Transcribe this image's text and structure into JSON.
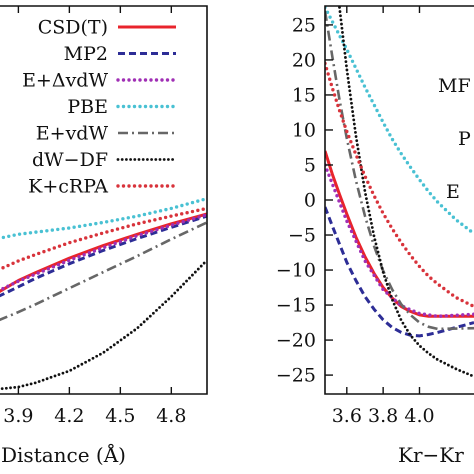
{
  "chart_data": [
    {
      "type": "line",
      "xlabel": "Distance (Å)",
      "xlim": [
        3.78,
        5.01
      ],
      "ylim": [
        -27.7,
        27.7
      ],
      "x_ticks": [
        "3.9",
        "4.2",
        "4.5",
        "4.8"
      ],
      "x_tick_values": [
        3.9,
        4.2,
        4.5,
        4.8
      ],
      "legend": {
        "placement": "top-left",
        "entries": [
          "CSD(T)",
          "MP2",
          "E+ΔvdW",
          "PBE",
          "E+vdW",
          "dW−DF",
          "K+cRPA"
        ]
      },
      "series": [
        {
          "name": "CSD(T)",
          "color": "#e8242c",
          "dash": "solid",
          "x": [
            3.78,
            3.9,
            4.0,
            4.2,
            4.4,
            4.6,
            4.8,
            5.01
          ],
          "y": [
            -13.2,
            -11.5,
            -10.4,
            -8.3,
            -6.5,
            -4.9,
            -3.4,
            -2.0
          ]
        },
        {
          "name": "MP2",
          "color": "#2d2d96",
          "dash": "dashed",
          "x": [
            3.78,
            3.9,
            4.0,
            4.2,
            4.4,
            4.6,
            4.8,
            5.01
          ],
          "y": [
            -13.8,
            -12.4,
            -11.2,
            -9.1,
            -7.2,
            -5.5,
            -3.9,
            -2.3
          ]
        },
        {
          "name": "E+ΔvdW",
          "color": "#a02fb5",
          "dash": "dotted",
          "x": [
            3.78,
            3.9,
            4.0,
            4.2,
            4.4,
            4.6,
            4.8,
            5.01
          ],
          "y": [
            -13.0,
            -11.6,
            -10.6,
            -8.6,
            -6.8,
            -5.1,
            -3.6,
            -2.1
          ]
        },
        {
          "name": "PBE",
          "color": "#49c1d3",
          "dash": "dotted",
          "x": [
            3.78,
            3.9,
            4.0,
            4.2,
            4.4,
            4.6,
            4.8,
            5.01
          ],
          "y": [
            -5.5,
            -4.9,
            -4.6,
            -4.0,
            -3.2,
            -2.3,
            -1.2,
            0.2
          ]
        },
        {
          "name": "E+vdW",
          "color": "#676767",
          "dash": "dashdot",
          "x": [
            3.78,
            3.9,
            4.0,
            4.2,
            4.4,
            4.6,
            4.8,
            5.01
          ],
          "y": [
            -17.2,
            -16.0,
            -14.9,
            -12.6,
            -10.3,
            -8.0,
            -5.6,
            -3.2
          ]
        },
        {
          "name": "dW−DF",
          "color": "#111111",
          "dash": "densedot",
          "x": [
            3.78,
            3.9,
            4.0,
            4.2,
            4.4,
            4.6,
            4.8,
            5.01
          ],
          "y": [
            -27.0,
            -26.7,
            -26.1,
            -24.4,
            -21.8,
            -18.3,
            -13.8,
            -8.6
          ]
        },
        {
          "name": "K+cRPA",
          "color": "#d8333b",
          "dash": "dotted",
          "x": [
            3.78,
            3.9,
            4.0,
            4.2,
            4.4,
            4.6,
            4.8,
            5.01
          ],
          "y": [
            -10.0,
            -8.7,
            -7.8,
            -6.1,
            -4.7,
            -3.4,
            -2.3,
            -1.2
          ]
        }
      ]
    },
    {
      "type": "line",
      "xlabel": "Kr−Kr",
      "xlim": [
        3.48,
        4.3
      ],
      "ylim": [
        -27.7,
        27.7
      ],
      "x_ticks": [
        "3.6",
        "3.8",
        "4.0"
      ],
      "x_tick_values": [
        3.6,
        3.8,
        4.0
      ],
      "y_ticks": [
        "25",
        "20",
        "15",
        "10",
        "5",
        "0",
        "−5",
        "−10",
        "−15",
        "−20",
        "−25"
      ],
      "y_tick_values": [
        25,
        20,
        15,
        10,
        5,
        0,
        -5,
        -10,
        -15,
        -20,
        -25
      ],
      "legend": {
        "placement": "right (clipped)",
        "entries": [
          "MF",
          "P",
          "E"
        ]
      },
      "series": [
        {
          "name": "CSD(T)",
          "color": "#e8242c",
          "dash": "solid",
          "x": [
            3.48,
            3.52,
            3.56,
            3.6,
            3.65,
            3.7,
            3.75,
            3.8,
            3.85,
            3.9,
            3.95,
            4.0,
            4.05,
            4.1,
            4.3
          ],
          "y": [
            7.0,
            3.7,
            0.8,
            -2.0,
            -5.3,
            -8.1,
            -10.5,
            -12.5,
            -14.0,
            -15.2,
            -15.9,
            -16.4,
            -16.6,
            -16.6,
            -16.6
          ]
        },
        {
          "name": "MP2",
          "color": "#2d2d96",
          "dash": "dashed",
          "x": [
            3.48,
            3.52,
            3.56,
            3.6,
            3.65,
            3.7,
            3.75,
            3.8,
            3.85,
            3.9,
            3.95,
            4.0,
            4.05,
            4.1,
            4.3
          ],
          "y": [
            -1.0,
            -3.7,
            -6.3,
            -8.9,
            -11.5,
            -13.8,
            -15.6,
            -17.1,
            -18.2,
            -18.9,
            -19.3,
            -19.4,
            -19.2,
            -18.9,
            -17.5
          ]
        },
        {
          "name": "E+ΔvdW",
          "color": "#a02fb5",
          "dash": "dotted",
          "x": [
            3.48,
            3.6,
            3.7,
            3.8,
            3.9,
            4.0,
            4.1,
            4.3
          ],
          "y": [
            5.0,
            -3.0,
            -8.7,
            -12.8,
            -15.1,
            -16.2,
            -16.6,
            -16.3
          ]
        },
        {
          "name": "PBE",
          "color": "#49c1d3",
          "dash": "dotted",
          "x": [
            3.48,
            3.52,
            3.56,
            3.6,
            3.65,
            3.7,
            3.75,
            3.8,
            3.85,
            3.9,
            3.95,
            4.0,
            4.05,
            4.1,
            4.2,
            4.3
          ],
          "y": [
            27.5,
            25.5,
            23.5,
            21.5,
            18.8,
            16.1,
            13.6,
            11.1,
            8.7,
            6.6,
            4.7,
            2.9,
            1.2,
            -0.3,
            -2.8,
            -4.8
          ]
        },
        {
          "name": "E+vdW",
          "color": "#676767",
          "dash": "dashdot",
          "x": [
            3.48,
            3.52,
            3.56,
            3.6,
            3.65,
            3.7,
            3.75,
            3.8,
            3.85,
            3.9,
            3.95,
            4.0,
            4.05,
            4.1,
            4.3
          ],
          "y": [
            27.0,
            20.5,
            14.3,
            8.8,
            2.8,
            -2.3,
            -6.6,
            -10.1,
            -12.8,
            -14.9,
            -16.4,
            -17.5,
            -18.1,
            -18.4,
            -18.3
          ]
        },
        {
          "name": "dW−DF",
          "color": "#111111",
          "dash": "densedot",
          "x": [
            3.56,
            3.6,
            3.65,
            3.7,
            3.75,
            3.8,
            3.85,
            3.9,
            3.95,
            4.0,
            4.05,
            4.1,
            4.2,
            4.3
          ],
          "y": [
            27.5,
            18.7,
            9.2,
            1.2,
            -5.2,
            -10.3,
            -14.2,
            -17.2,
            -19.3,
            -20.8,
            -21.9,
            -22.8,
            -24.1,
            -25.2
          ]
        },
        {
          "name": "K+cRPA",
          "color": "#d8333b",
          "dash": "dotted",
          "x": [
            3.48,
            3.52,
            3.56,
            3.6,
            3.65,
            3.7,
            3.75,
            3.8,
            3.85,
            3.9,
            3.95,
            4.0,
            4.05,
            4.1,
            4.2,
            4.3
          ],
          "y": [
            19.5,
            16.0,
            12.8,
            9.8,
            6.5,
            3.4,
            0.6,
            -1.9,
            -4.1,
            -6.1,
            -7.9,
            -9.5,
            -10.9,
            -12.0,
            -13.9,
            -15.2
          ]
        }
      ]
    }
  ]
}
